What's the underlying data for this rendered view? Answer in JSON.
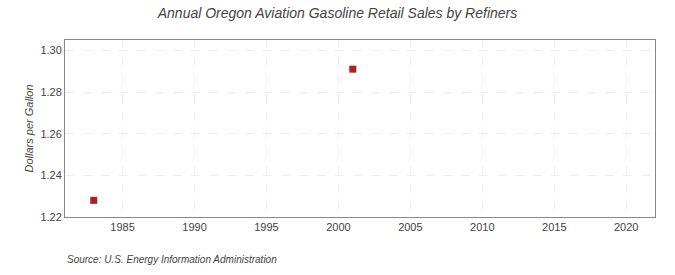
{
  "chart_data": {
    "type": "scatter",
    "title": "Annual Oregon Aviation Gasoline Retail Sales by Refiners",
    "ylabel": "Dollars per Gallon",
    "source": "Source: U.S. Energy Information Administration",
    "x": [
      1983,
      2001
    ],
    "values": [
      1.228,
      1.291
    ],
    "color": "#AA2222",
    "marker": "square",
    "xlim": [
      1981,
      2022
    ],
    "ylim": [
      1.22,
      1.305
    ],
    "xticks": [
      1985,
      1990,
      1995,
      2000,
      2005,
      2010,
      2015,
      2020
    ],
    "yticks": [
      1.22,
      1.24,
      1.26,
      1.28,
      {
        "value": 1.3,
        "label": "1.30"
      }
    ],
    "grid": true
  }
}
